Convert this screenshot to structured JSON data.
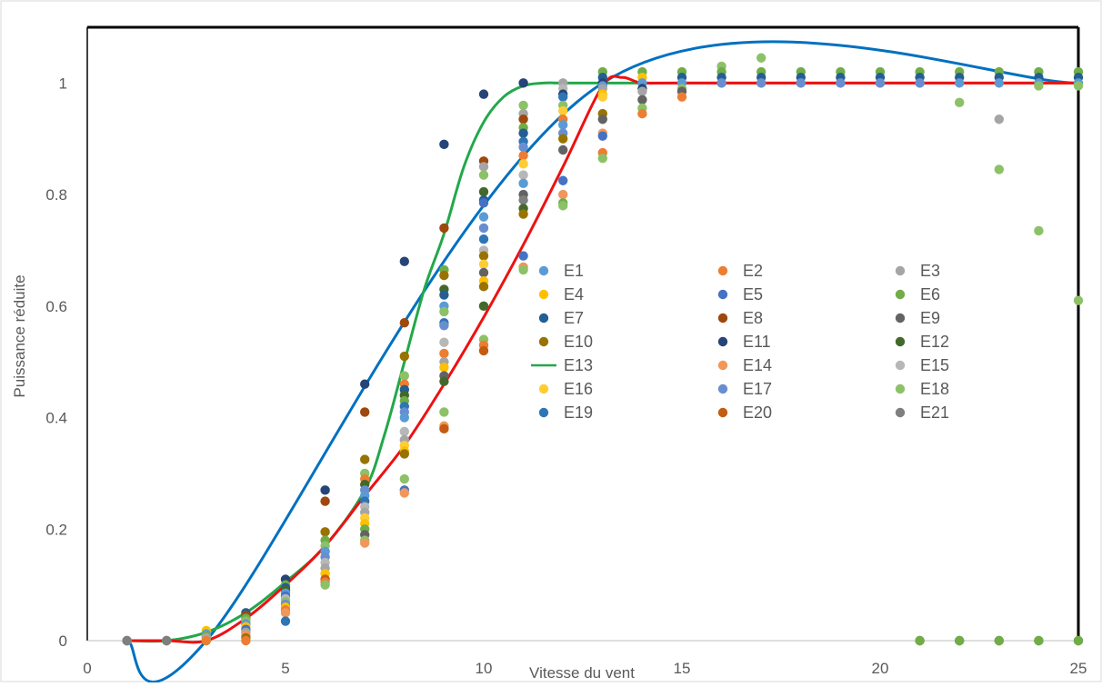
{
  "chart_data": {
    "type": "scatter",
    "title": "",
    "xlabel": "Vitesse du vent",
    "ylabel": "Puissance réduite",
    "xlim": [
      0,
      25
    ],
    "ylim": [
      0,
      1.1
    ],
    "x_ticks": [
      "0",
      "5",
      "10",
      "15",
      "20",
      "25"
    ],
    "y_ticks": [
      "0",
      "0.2",
      "0.4",
      "0.6",
      "0.8",
      "1"
    ],
    "grid": false,
    "legend_placement": "center-right, inside plot, 3 columns",
    "legend": [
      {
        "label": "E1",
        "color": "#5b9bd5",
        "kind": "marker"
      },
      {
        "label": "E2",
        "color": "#ed7d31",
        "kind": "marker"
      },
      {
        "label": "E3",
        "color": "#a5a5a5",
        "kind": "marker"
      },
      {
        "label": "E4",
        "color": "#ffc000",
        "kind": "marker"
      },
      {
        "label": "E5",
        "color": "#4472c4",
        "kind": "marker"
      },
      {
        "label": "E6",
        "color": "#70ad47",
        "kind": "marker"
      },
      {
        "label": "E7",
        "color": "#255e91",
        "kind": "marker"
      },
      {
        "label": "E8",
        "color": "#9e480e",
        "kind": "marker"
      },
      {
        "label": "E9",
        "color": "#636363",
        "kind": "marker"
      },
      {
        "label": "E10",
        "color": "#997300",
        "kind": "marker"
      },
      {
        "label": "E11",
        "color": "#264478",
        "kind": "marker"
      },
      {
        "label": "E12",
        "color": "#43682b",
        "kind": "marker"
      },
      {
        "label": "E13",
        "color": "#22a84a",
        "kind": "line"
      },
      {
        "label": "E14",
        "color": "#f1975a",
        "kind": "marker"
      },
      {
        "label": "E15",
        "color": "#b7b7b7",
        "kind": "marker"
      },
      {
        "label": "E16",
        "color": "#ffcd33",
        "kind": "marker"
      },
      {
        "label": "E17",
        "color": "#698ed0",
        "kind": "marker"
      },
      {
        "label": "E18",
        "color": "#8cc168",
        "kind": "marker"
      },
      {
        "label": "E19",
        "color": "#2e75b6",
        "kind": "marker"
      },
      {
        "label": "E20",
        "color": "#c55a11",
        "kind": "marker"
      },
      {
        "label": "E21",
        "color": "#7f7f7f",
        "kind": "marker"
      }
    ],
    "lines": [
      {
        "color": "#0070c0",
        "x": [
          1,
          3,
          13,
          25
        ],
        "y": [
          0,
          0,
          1,
          1
        ]
      },
      {
        "color": "#22a84a",
        "x": [
          1,
          2,
          3,
          4,
          5,
          6,
          7,
          7.5,
          8,
          8.5,
          9,
          9.5,
          10,
          10.5,
          11,
          11.5,
          12,
          13,
          25
        ],
        "y": [
          0,
          0,
          0.015,
          0.05,
          0.105,
          0.17,
          0.27,
          0.37,
          0.5,
          0.63,
          0.73,
          0.85,
          0.93,
          0.975,
          0.995,
          1,
          1,
          1,
          1
        ]
      },
      {
        "color": "#ee1111",
        "x": [
          1,
          2,
          3,
          4,
          5,
          6,
          7,
          8,
          9,
          10,
          11,
          12,
          13,
          13.5,
          14,
          15,
          25
        ],
        "y": [
          0,
          0,
          0,
          0.04,
          0.1,
          0.17,
          0.26,
          0.35,
          0.46,
          0.58,
          0.71,
          0.85,
          0.995,
          1.01,
          1,
          1,
          1
        ]
      }
    ],
    "points": [
      {
        "x": 1,
        "y": [
          0,
          0,
          0,
          0
        ],
        "colors": [
          "#5b9bd5",
          "#70ad47",
          "#8cc168",
          "#7f7f7f"
        ]
      },
      {
        "x": 2,
        "y": [
          0,
          0,
          0,
          0
        ],
        "colors": [
          "#5b9bd5",
          "#70ad47",
          "#8cc168",
          "#7f7f7f"
        ]
      },
      {
        "x": 3,
        "y": [
          0.018,
          0.012,
          0.008,
          0.005,
          0,
          0
        ],
        "colors": [
          "#ffc000",
          "#5b9bd5",
          "#70ad47",
          "#a5a5a5",
          "#8cc168",
          "#ed7d31"
        ]
      },
      {
        "x": 4,
        "y": [
          0.05,
          0.045,
          0.04,
          0.035,
          0.03,
          0.025,
          0.02,
          0.015,
          0.01,
          0.005,
          0
        ],
        "colors": [
          "#255e91",
          "#9e480e",
          "#70ad47",
          "#8cc168",
          "#5b9bd5",
          "#ffc000",
          "#4472c4",
          "#a5a5a5",
          "#f1975a",
          "#997300",
          "#ed7d31"
        ]
      },
      {
        "x": 5,
        "y": [
          0.11,
          0.1,
          0.095,
          0.09,
          0.085,
          0.08,
          0.075,
          0.07,
          0.065,
          0.06,
          0.055,
          0.05,
          0.035
        ],
        "colors": [
          "#264478",
          "#70ad47",
          "#255e91",
          "#43682b",
          "#5b9bd5",
          "#4472c4",
          "#b7b7b7",
          "#8cc168",
          "#698ed0",
          "#ffc000",
          "#ed7d31",
          "#f1975a",
          "#2e75b6"
        ]
      },
      {
        "x": 6,
        "y": [
          0.27,
          0.25,
          0.195,
          0.18,
          0.17,
          0.16,
          0.15,
          0.14,
          0.13,
          0.12,
          0.11,
          0.105,
          0.1
        ],
        "colors": [
          "#264478",
          "#9e480e",
          "#997300",
          "#70ad47",
          "#8cc168",
          "#5b9bd5",
          "#698ed0",
          "#b7b7b7",
          "#a5a5a5",
          "#ffc000",
          "#c55a11",
          "#ed7d31",
          "#8cc168"
        ]
      },
      {
        "x": 7,
        "y": [
          0.46,
          0.41,
          0.325,
          0.3,
          0.29,
          0.28,
          0.27,
          0.26,
          0.25,
          0.24,
          0.23,
          0.22,
          0.21,
          0.2,
          0.19,
          0.18,
          0.175
        ],
        "colors": [
          "#264478",
          "#9e480e",
          "#997300",
          "#8cc168",
          "#ed7d31",
          "#43682b",
          "#698ed0",
          "#5b9bd5",
          "#2e75b6",
          "#b7b7b7",
          "#a5a5a5",
          "#ffcd33",
          "#ffc000",
          "#70ad47",
          "#636363",
          "#8cc168",
          "#f1975a"
        ]
      },
      {
        "x": 8,
        "y": [
          0.68,
          0.57,
          0.51,
          0.475,
          0.46,
          0.45,
          0.44,
          0.43,
          0.42,
          0.41,
          0.4,
          0.375,
          0.36,
          0.35,
          0.34,
          0.335,
          0.29,
          0.27,
          0.265
        ],
        "colors": [
          "#264478",
          "#9e480e",
          "#997300",
          "#8cc168",
          "#ed7d31",
          "#255e91",
          "#43682b",
          "#70ad47",
          "#2e75b6",
          "#698ed0",
          "#5b9bd5",
          "#b7b7b7",
          "#a5a5a5",
          "#ffcd33",
          "#ffc000",
          "#997300",
          "#8cc168",
          "#4472c4",
          "#f1975a"
        ]
      },
      {
        "x": 9,
        "y": [
          0.89,
          0.74,
          0.665,
          0.655,
          0.63,
          0.62,
          0.6,
          0.59,
          0.57,
          0.565,
          0.535,
          0.515,
          0.5,
          0.49,
          0.475,
          0.465,
          0.41,
          0.385,
          0.38
        ],
        "colors": [
          "#264478",
          "#9e480e",
          "#70ad47",
          "#997300",
          "#43682b",
          "#255e91",
          "#5b9bd5",
          "#8cc168",
          "#2e75b6",
          "#698ed0",
          "#b7b7b7",
          "#ed7d31",
          "#a5a5a5",
          "#ffc000",
          "#636363",
          "#43682b",
          "#8cc168",
          "#f1975a",
          "#c55a11"
        ]
      },
      {
        "x": 10,
        "y": [
          0.98,
          0.86,
          0.85,
          0.835,
          0.805,
          0.79,
          0.785,
          0.76,
          0.74,
          0.72,
          0.7,
          0.69,
          0.675,
          0.66,
          0.645,
          0.635,
          0.6,
          0.54,
          0.53,
          0.52
        ],
        "colors": [
          "#264478",
          "#9e480e",
          "#a5a5a5",
          "#8cc168",
          "#43682b",
          "#255e91",
          "#4472c4",
          "#5b9bd5",
          "#698ed0",
          "#2e75b6",
          "#b7b7b7",
          "#997300",
          "#ffcd33",
          "#636363",
          "#ffc000",
          "#997300",
          "#43682b",
          "#8cc168",
          "#ed7d31",
          "#c55a11"
        ]
      },
      {
        "x": 11,
        "y": [
          1.0,
          0.96,
          0.945,
          0.935,
          0.92,
          0.91,
          0.895,
          0.885,
          0.87,
          0.855,
          0.835,
          0.82,
          0.8,
          0.79,
          0.775,
          0.765,
          0.69,
          0.67,
          0.665
        ],
        "colors": [
          "#264478",
          "#8cc168",
          "#a5a5a5",
          "#9e480e",
          "#70ad47",
          "#255e91",
          "#2e75b6",
          "#698ed0",
          "#ed7d31",
          "#ffcd33",
          "#b7b7b7",
          "#5b9bd5",
          "#636363",
          "#7f7f7f",
          "#43682b",
          "#997300",
          "#4472c4",
          "#f1975a",
          "#8cc168"
        ]
      },
      {
        "x": 12,
        "y": [
          1.0,
          0.99,
          0.98,
          0.975,
          0.96,
          0.95,
          0.935,
          0.925,
          0.91,
          0.9,
          0.88,
          0.825,
          0.8,
          0.785,
          0.78
        ],
        "colors": [
          "#a5a5a5",
          "#b7b7b7",
          "#264478",
          "#2e75b6",
          "#8cc168",
          "#ffcd33",
          "#ed7d31",
          "#5b9bd5",
          "#698ed0",
          "#997300",
          "#636363",
          "#4472c4",
          "#f1975a",
          "#70ad47",
          "#8cc168"
        ]
      },
      {
        "x": 13,
        "y": [
          1.02,
          1.01,
          1.0,
          0.995,
          0.99,
          0.98,
          0.975,
          0.945,
          0.935,
          0.91,
          0.905,
          0.875,
          0.865
        ],
        "colors": [
          "#70ad47",
          "#255e91",
          "#264478",
          "#5b9bd5",
          "#a5a5a5",
          "#ffc000",
          "#ffcd33",
          "#997300",
          "#636363",
          "#f1975a",
          "#4472c4",
          "#ed7d31",
          "#8cc168"
        ]
      },
      {
        "x": 14,
        "y": [
          1.02,
          1.01,
          1.0,
          0.99,
          0.985,
          0.97,
          0.955,
          0.945
        ],
        "colors": [
          "#70ad47",
          "#ffc000",
          "#5b9bd5",
          "#264478",
          "#a5a5a5",
          "#636363",
          "#8cc168",
          "#ed7d31"
        ]
      },
      {
        "x": 15,
        "y": [
          1.02,
          1.01,
          1.0,
          0.99,
          0.985,
          0.975
        ],
        "colors": [
          "#70ad47",
          "#255e91",
          "#5b9bd5",
          "#8cc168",
          "#636363",
          "#ed7d31"
        ]
      },
      {
        "x": 16,
        "y": [
          1.03,
          1.02,
          1.01,
          1.0,
          1.0
        ],
        "colors": [
          "#8cc168",
          "#70ad47",
          "#255e91",
          "#5b9bd5",
          "#698ed0"
        ]
      },
      {
        "x": 17,
        "y": [
          1.045,
          1.02,
          1.01,
          1.0,
          1.0
        ],
        "colors": [
          "#8cc168",
          "#70ad47",
          "#255e91",
          "#5b9bd5",
          "#698ed0"
        ]
      },
      {
        "x": 18,
        "y": [
          1.02,
          1.01,
          1.0,
          1.0
        ],
        "colors": [
          "#70ad47",
          "#255e91",
          "#5b9bd5",
          "#698ed0"
        ]
      },
      {
        "x": 19,
        "y": [
          1.02,
          1.01,
          1.0,
          1.0
        ],
        "colors": [
          "#70ad47",
          "#255e91",
          "#5b9bd5",
          "#698ed0"
        ]
      },
      {
        "x": 20,
        "y": [
          1.02,
          1.01,
          1.0,
          1.0
        ],
        "colors": [
          "#70ad47",
          "#255e91",
          "#5b9bd5",
          "#698ed0"
        ]
      },
      {
        "x": 21,
        "y": [
          1.02,
          1.01,
          1.0,
          1.0,
          0,
          0
        ],
        "colors": [
          "#70ad47",
          "#255e91",
          "#5b9bd5",
          "#698ed0",
          "#43682b",
          "#70ad47"
        ]
      },
      {
        "x": 22,
        "y": [
          1.02,
          1.01,
          1.0,
          0.965,
          0,
          0
        ],
        "colors": [
          "#70ad47",
          "#255e91",
          "#5b9bd5",
          "#8cc168",
          "#43682b",
          "#70ad47"
        ]
      },
      {
        "x": 23,
        "y": [
          1.02,
          1.01,
          1.0,
          0.935,
          0.845,
          0,
          0
        ],
        "colors": [
          "#70ad47",
          "#255e91",
          "#5b9bd5",
          "#a5a5a5",
          "#8cc168",
          "#43682b",
          "#70ad47"
        ]
      },
      {
        "x": 24,
        "y": [
          1.02,
          1.01,
          1.0,
          0.995,
          0.735,
          0,
          0
        ],
        "colors": [
          "#70ad47",
          "#255e91",
          "#5b9bd5",
          "#8cc168",
          "#8cc168",
          "#43682b",
          "#70ad47"
        ]
      },
      {
        "x": 25,
        "y": [
          1.02,
          1.01,
          1.0,
          0.995,
          0.61,
          0,
          0
        ],
        "colors": [
          "#70ad47",
          "#255e91",
          "#5b9bd5",
          "#8cc168",
          "#8cc168",
          "#43682b",
          "#70ad47"
        ]
      }
    ]
  }
}
